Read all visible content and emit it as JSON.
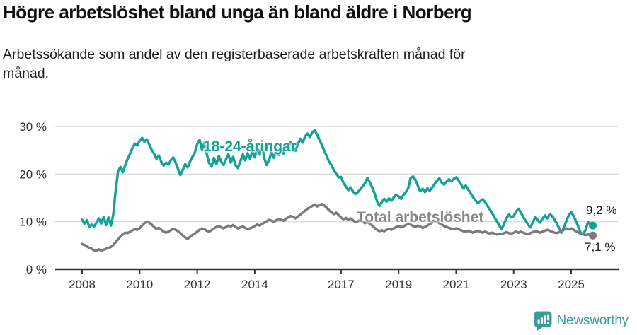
{
  "header": {
    "title": "Högre arbetslöshet bland unga än bland äldre i Norberg",
    "subtitle": "Arbetssökande som andel av den registerbaserade arbetskraften månad för månad."
  },
  "footer": {
    "brand": "Newsworthy"
  },
  "colors": {
    "young_line": "#13a295",
    "total_line": "#7a7a7a",
    "grid": "#dcdcdc",
    "axis": "#333333",
    "brand": "#3a9e96"
  },
  "chart_data": {
    "type": "line",
    "title": "Högre arbetslöshet bland unga än bland äldre i Norberg",
    "subtitle": "Arbetssökande som andel av den registerbaserade arbetskraften månad för månad.",
    "x_unit": "month",
    "x_start": "2008-01",
    "x_end": "2025-10",
    "ylim": [
      0,
      30
    ],
    "grid": "horizontal",
    "legend_position": "inline-labels",
    "y_ticks": [
      {
        "value": 0,
        "label": "0 %"
      },
      {
        "value": 10,
        "label": "10 %"
      },
      {
        "value": 20,
        "label": "20 %"
      },
      {
        "value": 30,
        "label": "30 %"
      }
    ],
    "x_ticks": [
      {
        "year": 2008,
        "label": "2008"
      },
      {
        "year": 2010,
        "label": "2010"
      },
      {
        "year": 2012,
        "label": "2012"
      },
      {
        "year": 2014,
        "label": "2014"
      },
      {
        "year": 2017,
        "label": "2017"
      },
      {
        "year": 2019,
        "label": "2019"
      },
      {
        "year": 2021,
        "label": "2021"
      },
      {
        "year": 2023,
        "label": "2023"
      },
      {
        "year": 2025,
        "label": "2025"
      }
    ],
    "series": [
      {
        "name": "18-24-åringar",
        "label_text": "18-24-åringar",
        "color": "#13a295",
        "end_label": "9,2 %",
        "last_value": 9.2,
        "values": [
          10.4,
          9.6,
          10.3,
          8.9,
          9.4,
          9.0,
          9.8,
          10.7,
          9.6,
          11.0,
          9.3,
          10.9,
          9.2,
          11.5,
          16.5,
          20.6,
          21.5,
          20.4,
          21.9,
          23.2,
          24.3,
          25.5,
          26.4,
          26.0,
          27.0,
          27.6,
          26.8,
          27.3,
          26.2,
          25.1,
          24.3,
          23.2,
          23.9,
          22.6,
          21.8,
          22.4,
          22.0,
          22.9,
          23.5,
          22.4,
          21.1,
          19.8,
          20.9,
          22.1,
          21.4,
          22.6,
          23.6,
          24.5,
          26.3,
          27.2,
          25.1,
          26.6,
          24.2,
          22.3,
          21.6,
          23.4,
          22.1,
          23.8,
          22.6,
          21.9,
          23.1,
          24.2,
          22.4,
          23.6,
          21.8,
          21.3,
          22.7,
          24.1,
          22.9,
          24.4,
          23.2,
          24.8,
          23.5,
          25.6,
          24.1,
          26.2,
          23.3,
          21.9,
          23.0,
          24.6,
          23.4,
          25.1,
          24.0,
          25.3,
          24.3,
          26.0,
          25.2,
          26.8,
          25.7,
          24.9,
          26.3,
          27.4,
          26.6,
          27.9,
          28.5,
          27.8,
          28.8,
          29.2,
          28.3,
          27.2,
          26.1,
          24.9,
          23.8,
          22.6,
          21.9,
          20.8,
          20.1,
          19.3,
          19.4,
          18.2,
          17.4,
          16.6,
          17.2,
          16.3,
          15.8,
          16.2,
          16.8,
          17.4,
          18.1,
          19.2,
          18.3,
          17.2,
          15.9,
          14.3,
          13.3,
          14.1,
          14.8,
          14.2,
          14.9,
          14.4,
          15.1,
          15.7,
          15.3,
          14.8,
          15.6,
          16.2,
          17.0,
          19.2,
          19.5,
          18.8,
          17.6,
          16.4,
          16.9,
          16.2,
          17.0,
          16.5,
          17.2,
          17.9,
          18.6,
          19.1,
          18.2,
          17.8,
          18.4,
          18.9,
          18.5,
          19.0,
          19.3,
          18.7,
          17.9,
          17.0,
          17.6,
          16.8,
          16.0,
          15.2,
          14.5,
          13.9,
          14.3,
          14.7,
          14.2,
          13.4,
          12.6,
          11.8,
          10.9,
          10.1,
          9.2,
          8.4,
          9.6,
          10.8,
          11.5,
          10.9,
          11.2,
          12.1,
          12.7,
          11.9,
          11.0,
          10.2,
          9.4,
          8.8,
          9.9,
          11.0,
          10.4,
          9.8,
          10.6,
          11.3,
          10.7,
          11.6,
          11.2,
          10.5,
          9.6,
          8.6,
          7.7,
          8.9,
          10.2,
          11.4,
          12.0,
          11.2,
          10.1,
          8.9,
          7.6,
          7.4,
          8.3,
          9.9,
          9.6,
          9.2
        ]
      },
      {
        "name": "Total arbetslöshet",
        "label_text": "Total arbetslöshet",
        "color": "#7a7a7a",
        "end_label": "7,1 %",
        "last_value": 7.1,
        "values": [
          5.3,
          5.1,
          4.8,
          4.5,
          4.3,
          4.0,
          3.9,
          4.2,
          3.9,
          4.1,
          4.3,
          4.5,
          4.7,
          5.1,
          5.7,
          6.3,
          6.9,
          7.4,
          7.7,
          7.6,
          7.9,
          8.2,
          8.4,
          8.3,
          8.6,
          9.2,
          9.7,
          10.0,
          9.8,
          9.4,
          8.9,
          8.5,
          8.7,
          8.3,
          7.9,
          7.7,
          7.9,
          8.2,
          8.5,
          8.3,
          8.0,
          7.6,
          7.1,
          6.7,
          6.4,
          6.8,
          7.2,
          7.5,
          7.9,
          8.3,
          8.6,
          8.4,
          8.1,
          7.9,
          8.2,
          8.6,
          8.9,
          9.1,
          8.8,
          8.6,
          8.9,
          9.2,
          9.0,
          9.3,
          8.9,
          8.6,
          8.8,
          9.0,
          8.7,
          8.4,
          8.6,
          8.8,
          9.1,
          9.4,
          9.2,
          9.5,
          9.8,
          10.1,
          10.4,
          10.2,
          10.0,
          10.3,
          10.6,
          10.4,
          10.2,
          10.6,
          10.9,
          11.2,
          11.0,
          10.7,
          11.1,
          11.5,
          11.9,
          12.3,
          12.7,
          13.0,
          13.3,
          13.6,
          13.2,
          13.5,
          13.7,
          13.4,
          12.9,
          12.4,
          12.0,
          11.6,
          11.9,
          11.4,
          10.9,
          10.5,
          10.8,
          10.4,
          10.7,
          10.3,
          9.9,
          10.1,
          10.4,
          10.0,
          9.7,
          9.9,
          9.6,
          9.2,
          8.7,
          8.3,
          8.0,
          8.2,
          8.0,
          8.3,
          8.5,
          8.3,
          8.6,
          8.9,
          9.1,
          8.8,
          9.0,
          9.3,
          9.6,
          9.4,
          9.1,
          8.9,
          9.2,
          9.0,
          8.7,
          8.9,
          9.2,
          9.5,
          9.8,
          10.2,
          10.0,
          9.7,
          9.4,
          9.1,
          8.9,
          8.7,
          8.5,
          8.4,
          8.6,
          8.4,
          8.2,
          8.0,
          7.9,
          8.1,
          7.9,
          7.7,
          7.9,
          8.1,
          7.9,
          7.7,
          7.9,
          7.7,
          7.5,
          7.7,
          7.5,
          7.3,
          7.5,
          7.4,
          7.6,
          7.8,
          7.6,
          7.5,
          7.7,
          7.9,
          7.7,
          7.9,
          7.7,
          7.5,
          7.4,
          7.6,
          7.8,
          8.0,
          7.9,
          7.7,
          7.9,
          8.1,
          8.3,
          8.1,
          7.9,
          7.7,
          7.6,
          7.8,
          8.0,
          8.3,
          8.6,
          8.4,
          8.6,
          8.3,
          8.0,
          7.7,
          7.5,
          7.3,
          7.2,
          7.3,
          7.2,
          7.1
        ]
      }
    ]
  }
}
